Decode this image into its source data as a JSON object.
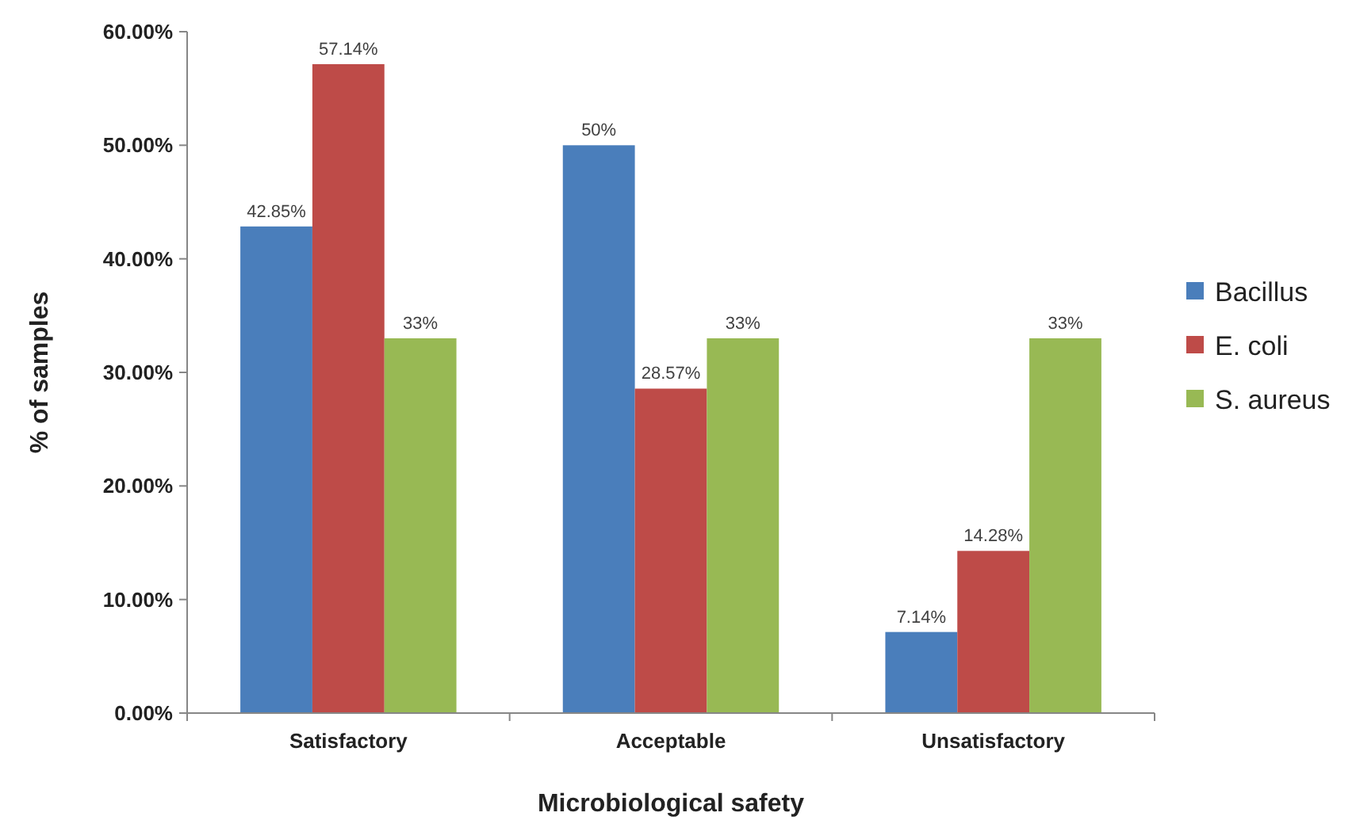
{
  "chart_data": {
    "type": "bar",
    "xlabel": "Microbiological safety",
    "ylabel": "% of samples",
    "categories": [
      "Satisfactory",
      "Acceptable",
      "Unsatisfactory"
    ],
    "series": [
      {
        "name": "Bacillus",
        "color": "#4a7ebb",
        "values": [
          42.85,
          50,
          7.14
        ],
        "value_labels": [
          "42.85%",
          "50%",
          "7.14%"
        ]
      },
      {
        "name": "E. coli",
        "color": "#be4b48",
        "values": [
          57.14,
          28.57,
          14.28
        ],
        "value_labels": [
          "57.14%",
          "28.57%",
          "14.28%"
        ]
      },
      {
        "name": "S. aureus",
        "color": "#98b954",
        "values": [
          33,
          33,
          33
        ],
        "value_labels": [
          "33%",
          "33%",
          "33%"
        ]
      }
    ],
    "ylim": [
      0,
      60
    ],
    "yticks": [
      {
        "value": 0,
        "label": "0.00%"
      },
      {
        "value": 10,
        "label": "10.00%"
      },
      {
        "value": 20,
        "label": "20.00%"
      },
      {
        "value": 30,
        "label": "30.00%"
      },
      {
        "value": 40,
        "label": "40.00%"
      },
      {
        "value": 50,
        "label": "50.00%"
      },
      {
        "value": 60,
        "label": "60.00%"
      }
    ],
    "grid": false,
    "legend": "right"
  }
}
